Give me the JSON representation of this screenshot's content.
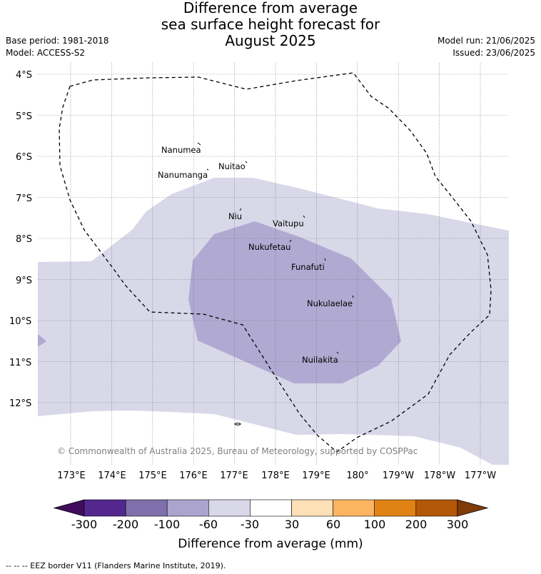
{
  "header": {
    "title_lines": [
      "Difference from average",
      "sea surface height forecast for",
      "August 2025"
    ],
    "base_period": "Base period: 1981-2018",
    "model": "Model: ACCESS-S2",
    "model_run": "Model run: 21/06/2025",
    "issued": "Issued: 23/06/2025"
  },
  "map": {
    "lat_labels": [
      "4°S",
      "5°S",
      "6°S",
      "7°S",
      "8°S",
      "9°S",
      "10°S",
      "11°S",
      "12°S"
    ],
    "lon_labels": [
      "173°E",
      "174°E",
      "175°E",
      "176°E",
      "177°E",
      "178°E",
      "179°E",
      "180°",
      "179°W",
      "178°W",
      "177°W"
    ],
    "places": [
      {
        "name": "Nanumea"
      },
      {
        "name": "Nuitao"
      },
      {
        "name": "Nanumanga"
      },
      {
        "name": "Niu"
      },
      {
        "name": "Vaitupu"
      },
      {
        "name": "Nukufetau"
      },
      {
        "name": "Funafuti"
      },
      {
        "name": "Nukulaelae"
      },
      {
        "name": "Nuilakita"
      }
    ],
    "copyright": "© Commonwealth of Australia 2025, Bureau of Meteorology, supported by COSPPac",
    "colors": {
      "land_outline": "#000000",
      "band_-60_-30": "#d8d8e9",
      "band_-100_-60": "#b0aad2",
      "ocean_neutral": "#ffffff"
    }
  },
  "colorbar": {
    "labels": [
      "-300",
      "-200",
      "-100",
      "-60",
      "-30",
      "30",
      "60",
      "100",
      "200",
      "300"
    ],
    "colors": [
      "#3f0d5c",
      "#54278f",
      "#7f6fab",
      "#aba4cf",
      "#d8d8e9",
      "#ffffff",
      "#fee0b6",
      "#fdb462",
      "#e08214",
      "#b35806",
      "#7f3b08"
    ],
    "title": "Difference from average (mm)"
  },
  "footnote": "--  --  -- EEZ border V11 (Flanders Marine Institute, 2019)."
}
